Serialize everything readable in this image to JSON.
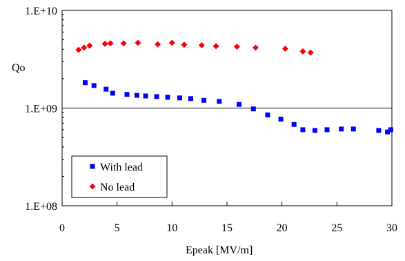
{
  "chart_data": {
    "type": "scatter",
    "xlabel": "Epeak   [MV/m]",
    "ylabel": "Qo",
    "xlim": [
      0,
      30
    ],
    "ylim": [
      100000000,
      10000000000
    ],
    "y_scale": "log",
    "x_ticks": [
      0,
      5,
      10,
      15,
      20,
      25,
      30
    ],
    "x_tick_labels": [
      "0",
      "5",
      "10",
      "15",
      "20",
      "25",
      "30"
    ],
    "y_ticks": [
      100000000,
      1000000000,
      10000000000
    ],
    "y_tick_labels": [
      "1.E+08",
      "1.E+09",
      "1.E+10"
    ],
    "gridlines_y": [
      1000000000
    ],
    "legend_position": "bottom-left",
    "series": [
      {
        "name": "With lead",
        "color": "#0000ff",
        "marker": "square",
        "x": [
          2.1,
          2.9,
          4.0,
          4.6,
          5.9,
          6.8,
          7.6,
          8.6,
          9.6,
          10.7,
          11.7,
          12.9,
          14.3,
          16.1,
          17.4,
          18.7,
          19.9,
          21.1,
          21.9,
          23.0,
          24.1,
          25.4,
          26.5,
          28.8,
          29.6,
          29.9
        ],
        "y": [
          1820000000,
          1700000000,
          1560000000,
          1420000000,
          1380000000,
          1350000000,
          1330000000,
          1310000000,
          1290000000,
          1270000000,
          1250000000,
          1200000000,
          1170000000,
          1090000000,
          980000000,
          850000000,
          770000000,
          680000000,
          600000000,
          590000000,
          600000000,
          610000000,
          610000000,
          590000000,
          570000000,
          600000000
        ]
      },
      {
        "name": "No lead",
        "color": "#ff0000",
        "marker": "diamond",
        "x": [
          1.5,
          2.0,
          2.5,
          3.9,
          4.4,
          5.6,
          6.9,
          8.7,
          10.0,
          11.1,
          12.7,
          14.0,
          15.9,
          17.6,
          20.3,
          21.9,
          22.6
        ],
        "y": [
          3950000000,
          4150000000,
          4350000000,
          4550000000,
          4600000000,
          4600000000,
          4650000000,
          4500000000,
          4650000000,
          4450000000,
          4400000000,
          4300000000,
          4250000000,
          4150000000,
          4050000000,
          3800000000,
          3700000000
        ]
      }
    ]
  }
}
